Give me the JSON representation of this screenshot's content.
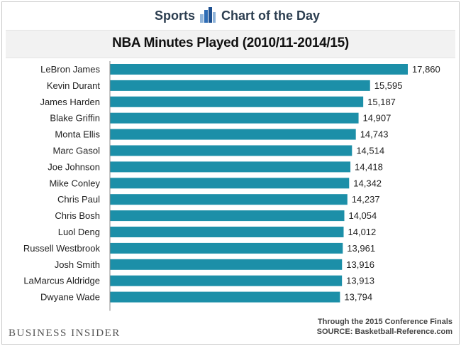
{
  "header": {
    "section": "Sports",
    "series_name": "Chart of the Day"
  },
  "footer": {
    "brand": "BUSINESS INSIDER",
    "note": "Through the 2015 Conference Finals",
    "source": "SOURCE: Basketball-Reference.com"
  },
  "colors": {
    "bar": "#1c8fa8",
    "axis": "#888888",
    "text": "#222222"
  },
  "chart_data": {
    "type": "bar",
    "orientation": "horizontal",
    "title": "NBA Minutes Played (2010/11-2014/15)",
    "xlabel": "",
    "ylabel": "",
    "xlim": [
      0,
      18500
    ],
    "categories": [
      "LeBron James",
      "Kevin Durant",
      "James Harden",
      "Blake Griffin",
      "Monta Ellis",
      "Marc Gasol",
      "Joe Johnson",
      "Mike Conley",
      "Chris Paul",
      "Chris Bosh",
      "Luol Deng",
      "Russell Westbrook",
      "Josh Smith",
      "LaMarcus Aldridge",
      "Dwyane Wade"
    ],
    "values": [
      17860,
      15595,
      15187,
      14907,
      14743,
      14514,
      14418,
      14342,
      14237,
      14054,
      14012,
      13961,
      13916,
      13913,
      13794
    ],
    "value_labels": [
      "17,860",
      "15,595",
      "15,187",
      "14,907",
      "14,743",
      "14,514",
      "14,418",
      "14,342",
      "14,237",
      "14,054",
      "14,012",
      "13,961",
      "13,916",
      "13,913",
      "13,794"
    ]
  }
}
